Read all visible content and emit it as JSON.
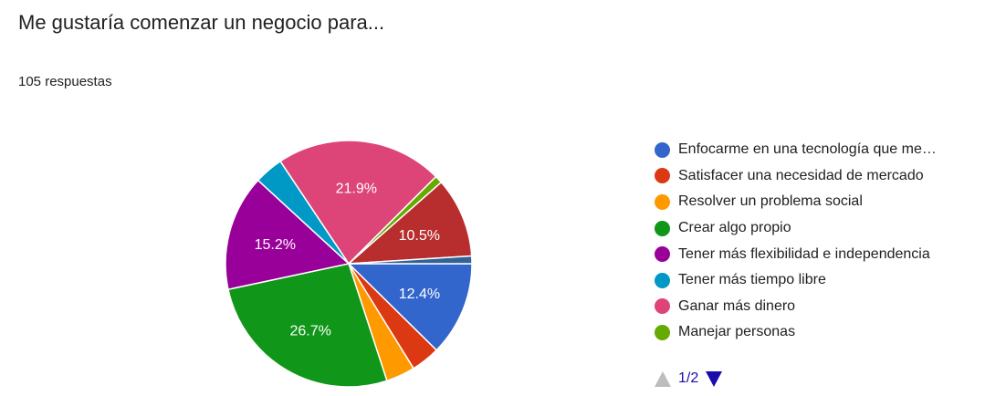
{
  "title": "Me gustaría comenzar un negocio para...",
  "response_count": "105 respuestas",
  "pager": {
    "page": "1/2"
  },
  "chart_data": {
    "type": "pie",
    "legend_position": "right",
    "total_responses": 105,
    "slices": [
      {
        "label": "Enfocarme en una tecnología que me…",
        "value": 12.4,
        "display": "12.4%",
        "color": "#3366cc"
      },
      {
        "label": "Satisfacer una necesidad de mercado",
        "value": 3.8,
        "display": "",
        "color": "#dc3912"
      },
      {
        "label": "Resolver un problema social",
        "value": 3.8,
        "display": "",
        "color": "#ff9900"
      },
      {
        "label": "Crear algo propio",
        "value": 26.7,
        "display": "26.7%",
        "color": "#109618"
      },
      {
        "label": "Tener más flexibilidad e independencia",
        "value": 15.2,
        "display": "15.2%",
        "color": "#990099"
      },
      {
        "label": "Tener más tiempo libre",
        "value": 3.8,
        "display": "",
        "color": "#0099c6"
      },
      {
        "label": "Ganar más dinero",
        "value": 21.9,
        "display": "21.9%",
        "color": "#dd4477"
      },
      {
        "label": "Manejar personas",
        "value": 1.0,
        "display": "",
        "color": "#66aa00"
      },
      {
        "label": "",
        "value": 10.5,
        "display": "10.5%",
        "color": "#b82e2e"
      },
      {
        "label": "",
        "value": 1.0,
        "display": "",
        "color": "#316395"
      }
    ]
  }
}
